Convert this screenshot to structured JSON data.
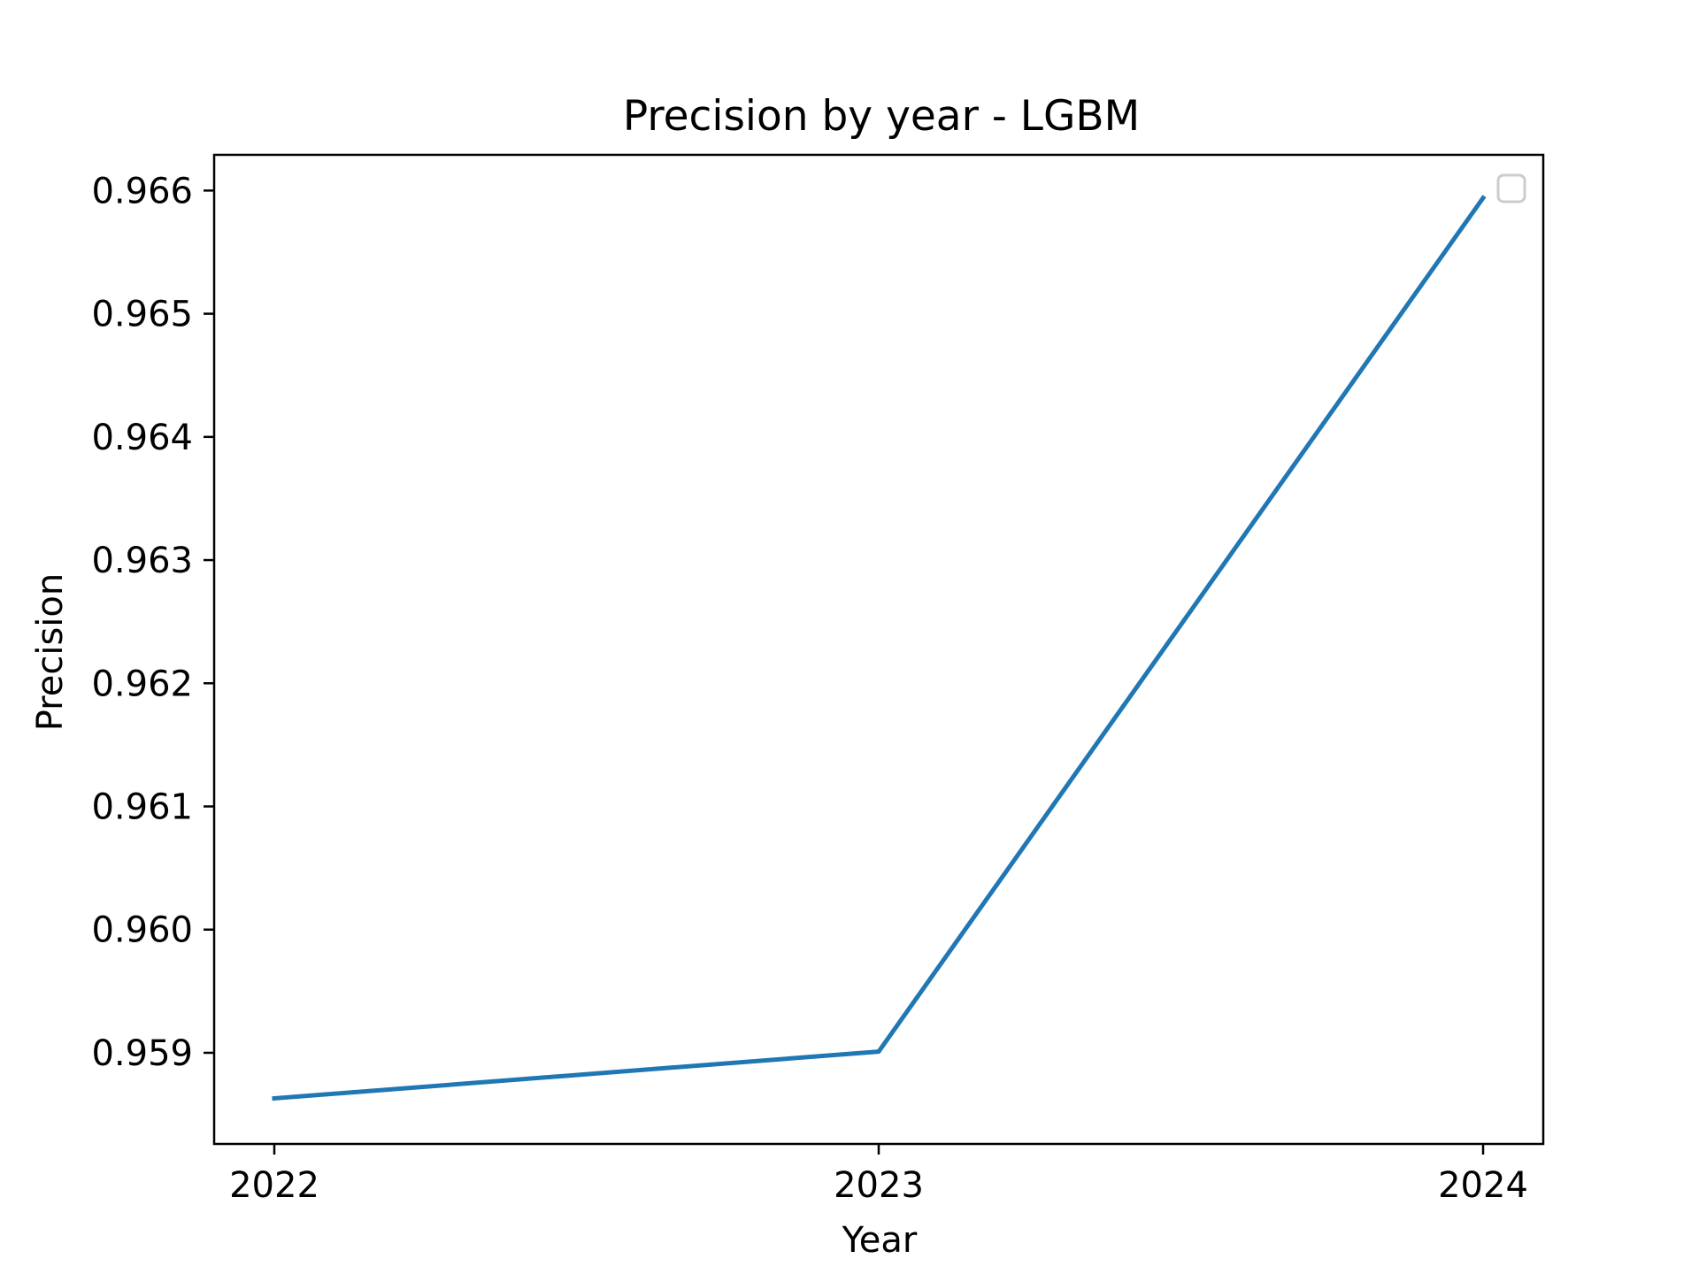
{
  "chart_data": {
    "type": "line",
    "title": "Precision by year - LGBM",
    "xlabel": "Year",
    "ylabel": "Precision",
    "x": [
      2022,
      2023,
      2024
    ],
    "xticks": [
      "2022",
      "2023",
      "2024"
    ],
    "yticks": [
      "0.959",
      "0.960",
      "0.961",
      "0.962",
      "0.963",
      "0.964",
      "0.965",
      "0.966"
    ],
    "ylim": [
      0.95826,
      0.96629
    ],
    "series": [
      {
        "values": [
          0.95863,
          0.95901,
          0.96594
        ],
        "color": "#1f77b4"
      }
    ],
    "grid": false,
    "legend": "top-right, empty"
  }
}
